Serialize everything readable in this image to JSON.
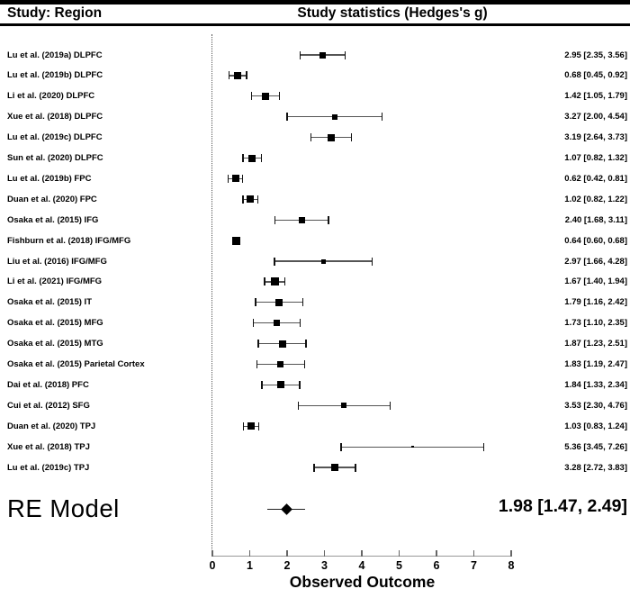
{
  "header": {
    "left_title": "Study: Region",
    "right_title": "Study statistics (Hedges's g)"
  },
  "chart_data": {
    "type": "forest",
    "xlabel": "Observed Outcome",
    "xlim": [
      0,
      8
    ],
    "x_ticks": [
      0,
      1,
      2,
      3,
      4,
      5,
      6,
      7,
      8
    ],
    "zero_reference_line": 0,
    "studies": [
      {
        "label": "Lu et al. (2019a) DLPFC",
        "estimate": 2.95,
        "ci_low": 2.35,
        "ci_high": 3.56,
        "display": "2.95 [2.35, 3.56]",
        "marker_size": 7
      },
      {
        "label": "Lu et al. (2019b) DLPFC",
        "estimate": 0.68,
        "ci_low": 0.45,
        "ci_high": 0.92,
        "display": "0.68 [0.45, 0.92]",
        "marker_size": 8
      },
      {
        "label": "Li et al. (2020) DLPFC",
        "estimate": 1.42,
        "ci_low": 1.05,
        "ci_high": 1.79,
        "display": "1.42 [1.05, 1.79]",
        "marker_size": 8
      },
      {
        "label": "Xue et al. (2018) DLPFC",
        "estimate": 3.27,
        "ci_low": 2.0,
        "ci_high": 4.54,
        "display": "3.27 [2.00, 4.54]",
        "marker_size": 6
      },
      {
        "label": "Lu et al. (2019c) DLPFC",
        "estimate": 3.19,
        "ci_low": 2.64,
        "ci_high": 3.73,
        "display": "3.19 [2.64, 3.73]",
        "marker_size": 8
      },
      {
        "label": "Sun et al. (2020) DLPFC",
        "estimate": 1.07,
        "ci_low": 0.82,
        "ci_high": 1.32,
        "display": "1.07 [0.82, 1.32]",
        "marker_size": 8
      },
      {
        "label": "Lu et al. (2019b) FPC",
        "estimate": 0.62,
        "ci_low": 0.42,
        "ci_high": 0.81,
        "display": "0.62 [0.42, 0.81]",
        "marker_size": 8
      },
      {
        "label": "Duan et al. (2020) FPC",
        "estimate": 1.02,
        "ci_low": 0.82,
        "ci_high": 1.22,
        "display": "1.02 [0.82, 1.22]",
        "marker_size": 8
      },
      {
        "label": "Osaka et al. (2015) IFG",
        "estimate": 2.4,
        "ci_low": 1.68,
        "ci_high": 3.11,
        "display": "2.40 [1.68, 3.11]",
        "marker_size": 7
      },
      {
        "label": "Fishburn et al. (2018) IFG/MFG",
        "estimate": 0.64,
        "ci_low": 0.6,
        "ci_high": 0.68,
        "display": "0.64 [0.60, 0.68]",
        "marker_size": 9
      },
      {
        "label": "Liu et al. (2016) IFG/MFG",
        "estimate": 2.97,
        "ci_low": 1.66,
        "ci_high": 4.28,
        "display": "2.97 [1.66, 4.28]",
        "marker_size": 5
      },
      {
        "label": "Li et al. (2021) IFG/MFG",
        "estimate": 1.67,
        "ci_low": 1.4,
        "ci_high": 1.94,
        "display": "1.67 [1.40, 1.94]",
        "marker_size": 9
      },
      {
        "label": "Osaka et al. (2015) IT",
        "estimate": 1.79,
        "ci_low": 1.16,
        "ci_high": 2.42,
        "display": "1.79 [1.16, 2.42]",
        "marker_size": 8
      },
      {
        "label": "Osaka et al. (2015) MFG",
        "estimate": 1.73,
        "ci_low": 1.1,
        "ci_high": 2.35,
        "display": "1.73 [1.10, 2.35]",
        "marker_size": 7
      },
      {
        "label": "Osaka et al. (2015) MTG",
        "estimate": 1.87,
        "ci_low": 1.23,
        "ci_high": 2.51,
        "display": "1.87 [1.23, 2.51]",
        "marker_size": 8
      },
      {
        "label": "Osaka et al. (2015) Parietal Cortex",
        "estimate": 1.83,
        "ci_low": 1.19,
        "ci_high": 2.47,
        "display": "1.83 [1.19, 2.47]",
        "marker_size": 7
      },
      {
        "label": "Dai et al. (2018) PFC",
        "estimate": 1.84,
        "ci_low": 1.33,
        "ci_high": 2.34,
        "display": "1.84 [1.33, 2.34]",
        "marker_size": 8
      },
      {
        "label": "Cui et al. (2012) SFG",
        "estimate": 3.53,
        "ci_low": 2.3,
        "ci_high": 4.76,
        "display": "3.53 [2.30, 4.76]",
        "marker_size": 6
      },
      {
        "label": "Duan et al. (2020) TPJ",
        "estimate": 1.03,
        "ci_low": 0.83,
        "ci_high": 1.24,
        "display": "1.03 [0.83, 1.24]",
        "marker_size": 8
      },
      {
        "label": "Xue et al. (2018) TPJ",
        "estimate": 5.36,
        "ci_low": 3.45,
        "ci_high": 7.26,
        "display": "5.36 [3.45, 7.26]",
        "marker_size": 2.5
      },
      {
        "label": "Lu et al. (2019c) TPJ",
        "estimate": 3.28,
        "ci_low": 2.72,
        "ci_high": 3.83,
        "display": "3.28 [2.72, 3.83]",
        "marker_size": 8
      }
    ],
    "summary": {
      "label": "RE Model",
      "estimate": 1.98,
      "ci_low": 1.47,
      "ci_high": 2.49,
      "display": "1.98 [1.47, 2.49]"
    }
  },
  "colors": {
    "background": "#ffffff",
    "text": "#000000",
    "rule": "#000000",
    "marker": "#000000",
    "error_bar": "#555555",
    "error_cap": "#111111",
    "axis_line": "#999999",
    "tick": "#666666",
    "zero_line": "#555555"
  }
}
